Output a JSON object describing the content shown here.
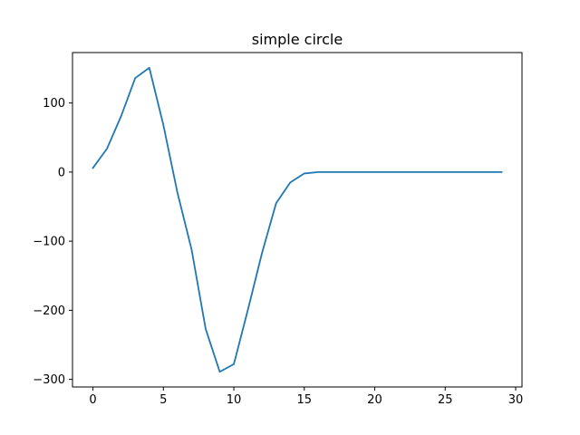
{
  "chart_data": {
    "type": "line",
    "title": "simple circle",
    "xlabel": "",
    "ylabel": "",
    "xlim": [
      -1.45,
      30.45
    ],
    "ylim": [
      -311,
      173
    ],
    "x_ticks": [
      0,
      5,
      10,
      15,
      20,
      25,
      30
    ],
    "y_ticks": [
      -300,
      -200,
      -100,
      0,
      100
    ],
    "x_tick_labels": [
      "0",
      "5",
      "10",
      "15",
      "20",
      "25",
      "30"
    ],
    "y_tick_labels": [
      "−300",
      "−200",
      "−100",
      "0",
      "100"
    ],
    "grid": false,
    "legend": "none",
    "series": [
      {
        "color": "#1f77b4",
        "x": [
          0,
          1,
          2,
          3,
          4,
          5,
          6,
          7,
          8,
          9,
          10,
          11,
          12,
          13,
          14,
          15,
          16,
          17,
          18,
          19,
          20,
          21,
          22,
          23,
          24,
          25,
          26,
          27,
          28,
          29
        ],
        "values": [
          6,
          34,
          81,
          136,
          151,
          68,
          -30,
          -112,
          -227,
          -289,
          -278,
          -199,
          -117,
          -45,
          -15,
          -2,
          0,
          0,
          0,
          0,
          0,
          0,
          0,
          0,
          0,
          0,
          0,
          0,
          0,
          0
        ]
      }
    ]
  }
}
